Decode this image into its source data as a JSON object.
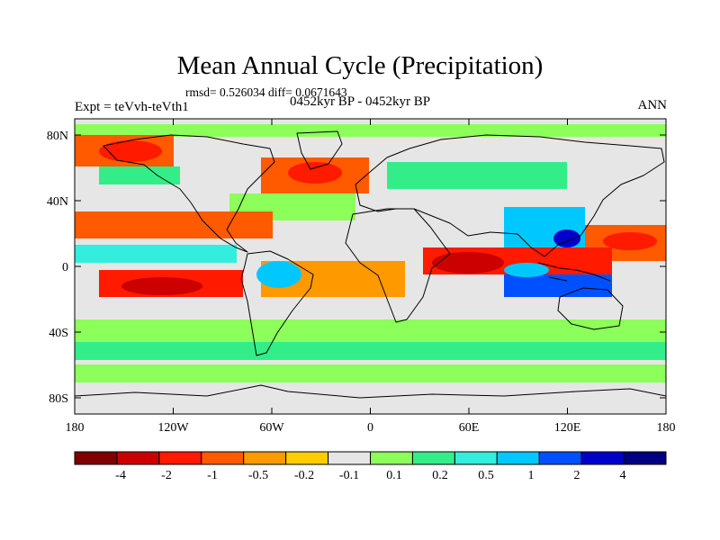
{
  "title": "Mean Annual Cycle (Precipitation)",
  "stats_line": "rmsd= 0.526034 diff= 0.0671643",
  "period_label": "0452kyr BP - 0452kyr BP",
  "experiment_label": "Expt = teVvh-teVth1",
  "season_label": "ANN",
  "map": {
    "lat_ticks": [
      "80N",
      "40N",
      "0",
      "40S",
      "80S"
    ],
    "lon_ticks": [
      "180",
      "120W",
      "60W",
      "0",
      "60E",
      "120E",
      "180"
    ],
    "land_fill": "#e6e6e6",
    "coastline_color": "#000000"
  },
  "colorbar": {
    "colors": [
      "#800000",
      "#cc0000",
      "#ff1a00",
      "#ff5a00",
      "#ff9900",
      "#ffcc00",
      "#e6e6e6",
      "#8cff5a",
      "#33ee88",
      "#33eedd",
      "#00c8ff",
      "#0050ff",
      "#0000cc",
      "#000080"
    ],
    "labels": [
      "-4",
      "-2",
      "-1",
      "-0.5",
      "-0.2",
      "-0.1",
      "0.1",
      "0.2",
      "0.5",
      "1",
      "2",
      "4"
    ]
  }
}
